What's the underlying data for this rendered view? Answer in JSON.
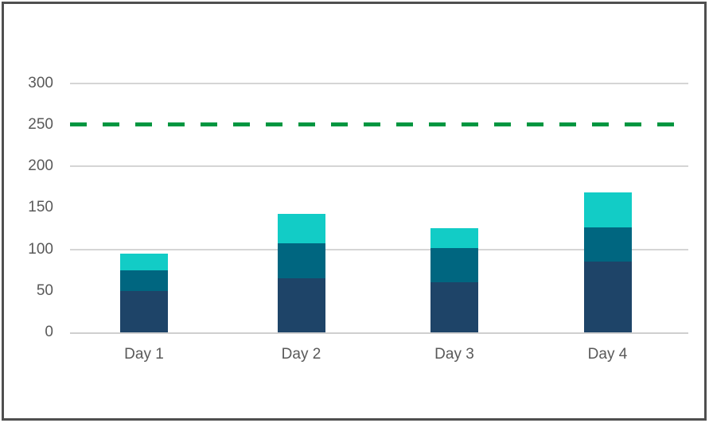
{
  "window": {
    "background_color": "#ffffff",
    "border_color": "#4f4f4f"
  },
  "chart_data": {
    "type": "bar",
    "stacked": true,
    "title": "",
    "xlabel": "",
    "ylabel": "",
    "legend": "none",
    "categories": [
      "Day 1",
      "Day 2",
      "Day 3",
      "Day 4"
    ],
    "series": [
      {
        "name": "bottom-segment",
        "color": "#1E4468",
        "values": [
          50,
          65,
          60,
          85
        ]
      },
      {
        "name": "middle-segment",
        "color": "#006680",
        "values": [
          25,
          42,
          41,
          41
        ]
      },
      {
        "name": "top-segment",
        "color": "#12CCC6",
        "values": [
          20,
          36,
          24,
          42
        ]
      }
    ],
    "stack_totals": [
      95,
      143,
      125,
      168
    ],
    "reference_line": {
      "value": 250,
      "style": "dashed",
      "color": "#009640"
    },
    "y_axis": {
      "tick_labels": [
        "0",
        "50",
        "100",
        "150",
        "200",
        "250",
        "300"
      ],
      "tick_values": [
        0,
        50,
        100,
        150,
        200,
        250,
        300
      ],
      "gridline_values": [
        100,
        200,
        300
      ],
      "range": [
        0,
        340
      ],
      "label_color": "#595959"
    },
    "x_axis": {
      "label_color": "#595959"
    },
    "gridline_color": "#d5d5d5",
    "axis_line_color": "#cfcfcf"
  }
}
